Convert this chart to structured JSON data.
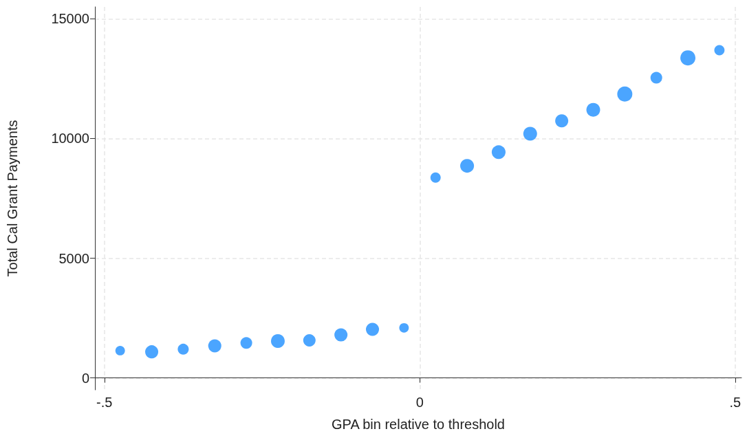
{
  "chart_data": {
    "type": "bubble",
    "xlabel": "GPA bin relative to threshold",
    "ylabel": "Total Cal Grant Payments",
    "x": [
      -0.475,
      -0.425,
      -0.375,
      -0.325,
      -0.275,
      -0.225,
      -0.175,
      -0.125,
      -0.075,
      -0.025,
      0.025,
      0.075,
      0.125,
      0.175,
      0.225,
      0.275,
      0.325,
      0.375,
      0.425,
      0.475
    ],
    "values": [
      1140,
      1090,
      1200,
      1340,
      1460,
      1540,
      1570,
      1800,
      2030,
      2090,
      8370,
      8860,
      9430,
      10200,
      10740,
      11200,
      11860,
      12540,
      13370,
      13690
    ],
    "sizes": [
      0.4,
      0.75,
      0.53,
      0.75,
      0.6,
      0.83,
      0.67,
      0.75,
      0.75,
      0.4,
      0.46,
      0.83,
      0.83,
      0.83,
      0.75,
      0.83,
      1,
      0.6,
      1,
      0.46
    ],
    "color": "#1e8fff",
    "xlim": [
      -0.515,
      0.51
    ],
    "xticks": [
      {
        "value": -0.5,
        "label": "-.5"
      },
      {
        "value": 0,
        "label": "0"
      },
      {
        "value": 0.5,
        "label": ".5"
      }
    ],
    "ylim": [
      -500,
      15500
    ],
    "yticks": [
      0,
      5000,
      10000,
      15000
    ],
    "grid": true
  }
}
